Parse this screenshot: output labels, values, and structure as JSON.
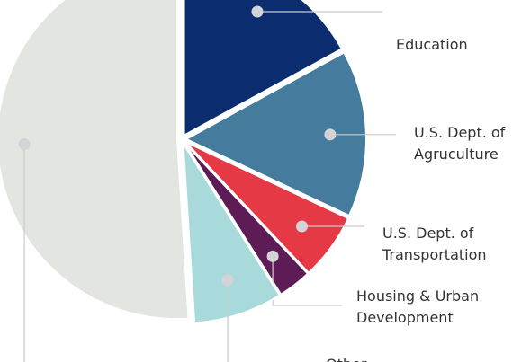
{
  "chart_data": {
    "type": "pie",
    "categories": [
      "Education",
      "U.S. Dept. of Agruculture",
      "U.S. Dept. of Transportation",
      "Housing & Urban Development",
      "Other",
      null
    ],
    "values": [
      17,
      15,
      6,
      3,
      8,
      51
    ],
    "colors": [
      "#0b2d6f",
      "#457b9d",
      "#e63946",
      "#5e1c57",
      "#a8dadc",
      "#e2e5e0"
    ]
  }
}
